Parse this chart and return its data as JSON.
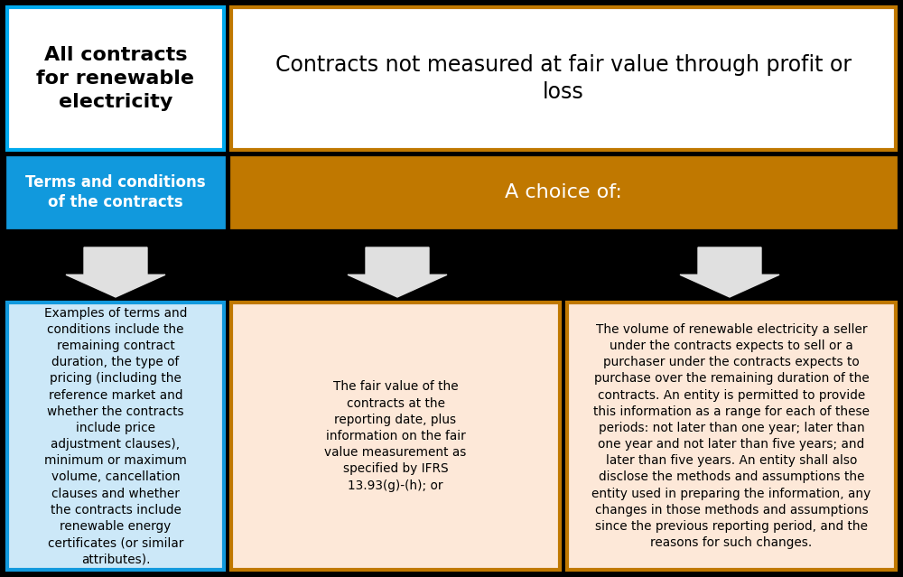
{
  "bg_color": "#000000",
  "box1_top_text": "All contracts\nfor renewable\nelectricity",
  "box1_top_bg": "#ffffff",
  "box1_top_border": "#00aaee",
  "box2_top_text": "Contracts not measured at fair value through profit or\nloss",
  "box2_top_bg": "#ffffff",
  "box2_top_border": "#c07800",
  "box1_mid_text": "Terms and conditions\nof the contracts",
  "box1_mid_bg": "#1199dd",
  "box1_mid_border": "#1199dd",
  "box2_mid_text": "A choice of:",
  "box2_mid_bg": "#c07800",
  "box2_mid_border": "#c07800",
  "box1_bot_text": "Examples of terms and\nconditions include the\nremaining contract\nduration, the type of\npricing (including the\nreference market and\nwhether the contracts\ninclude price\nadjustment clauses),\nminimum or maximum\nvolume, cancellation\nclauses and whether\nthe contracts include\nrenewable energy\ncertificates (or similar\nattributes).",
  "box1_bot_bg": "#cce8f8",
  "box1_bot_border": "#1199dd",
  "box2_bot_text": "The fair value of the\ncontracts at the\nreporting date, plus\ninformation on the fair\nvalue measurement as\nspecified by IFRS\n13.93(g)-(h); or",
  "box2_bot_bg": "#fde8d8",
  "box2_bot_border": "#c07800",
  "box3_bot_text": "The volume of renewable electricity a seller\nunder the contracts expects to sell or a\npurchaser under the contracts expects to\npurchase over the remaining duration of the\ncontracts. An entity is permitted to provide\nthis information as a range for each of these\nperiods: not later than one year; later than\none year and not later than five years; and\nlater than five years. An entity shall also\ndisclose the methods and assumptions the\nentity used in preparing the information, any\nchanges in those methods and assumptions\nsince the previous reporting period, and the\nreasons for such changes.",
  "box3_bot_bg": "#fde8d8",
  "box3_bot_border": "#c07800",
  "arrow_color": "#e0e0e0",
  "text_color_dark": "#000000",
  "text_color_light": "#ffffff"
}
